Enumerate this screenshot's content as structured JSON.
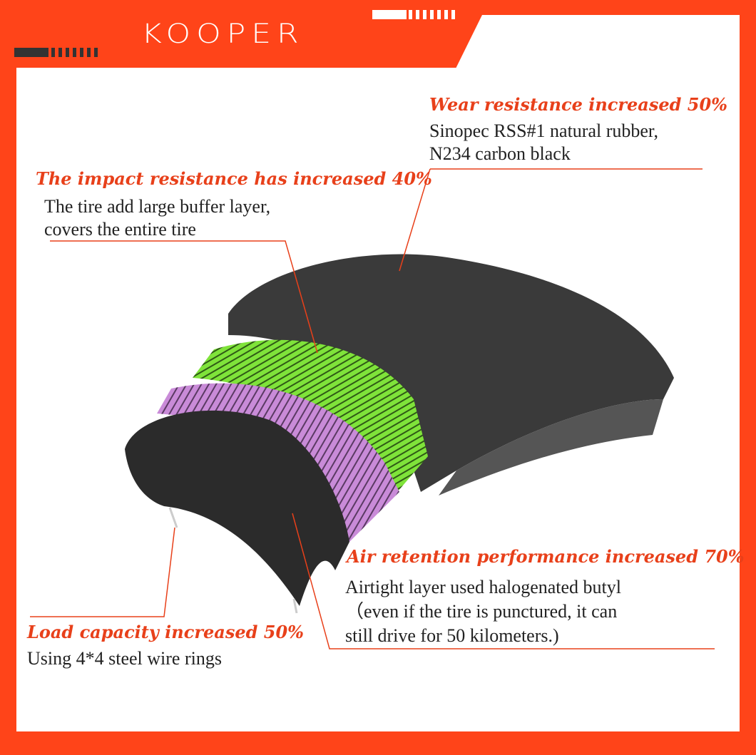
{
  "brand": {
    "logo": "KOOPER",
    "accent_color": "#FF4419"
  },
  "callouts": [
    {
      "title": "Wear resistance increased 50%",
      "lines": [
        "Sinopec RSS#1 natural rubber,",
        "N234 carbon black"
      ]
    },
    {
      "title": "The impact resistance has increased 40%",
      "lines": [
        "The tire add large buffer layer,",
        "covers the entire tire"
      ]
    },
    {
      "title": "Air retention performance increased 70%",
      "lines": [
        "Airtight layer used halogenated butyl",
        "（even if the tire is punctured, it can",
        "still drive for 50 kilometers.)"
      ]
    },
    {
      "title": "Load capacity increased  50%",
      "lines": [
        "Using 4*4 steel wire rings"
      ]
    }
  ]
}
